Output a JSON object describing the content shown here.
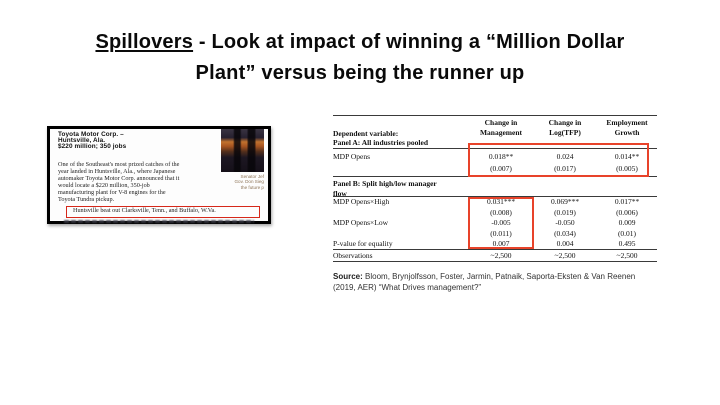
{
  "title": {
    "keyword": "Spillovers",
    "line1_rest": " - Look at impact of winning a “Million Dollar",
    "line2": "Plant” versus being the runner up"
  },
  "clipping": {
    "headline_lines": [
      "Toyota Motor Corp. –",
      "Huntsville, Ala.",
      "$220 million; 350 jobs"
    ],
    "body_lines": [
      "One of the Southeast's most prized catches of the",
      "year landed in Huntsville, Ala., where Japanese",
      "automaker Toyota Motor Corp. announced that it",
      "would locate a $220 million, 350-job",
      "manufacturing plant for V-8 engines for the",
      "Toyota Tundra pickup."
    ],
    "highlight_text": "Huntsville beat out Clarksville, Tenn., and Buffalo, W.Va.",
    "photo_caption_lines": [
      "Senator Jef",
      "Gov. Don Sieg",
      "the future p"
    ]
  },
  "table": {
    "dep_var_label": "Dependent variable:",
    "col_headers": [
      {
        "line1": "Change in",
        "line2": "Management"
      },
      {
        "line1": "Change in",
        "line2": "Log(TFP)"
      },
      {
        "line1": "Employment",
        "line2": "Growth"
      }
    ],
    "panel_a_label": "Panel A: All industries pooled",
    "rows_a": [
      {
        "label": "MDP Opens",
        "c1": "0.018**",
        "c2": "0.024",
        "c3": "0.014**"
      },
      {
        "label": "",
        "c1": "(0.007)",
        "c2": "(0.017)",
        "c3": "(0.005)"
      }
    ],
    "panel_b_label_line1": "Panel B: Split high/low manager",
    "panel_b_label_line2": "flow",
    "rows_b": [
      {
        "label": "MDP Opens×High",
        "c1": "0.031***",
        "c2": "0.069***",
        "c3": "0.017**"
      },
      {
        "label": "",
        "c1": "(0.008)",
        "c2": "(0.019)",
        "c3": "(0.006)"
      },
      {
        "label": "MDP Opens×Low",
        "c1": "-0.005",
        "c2": "-0.050",
        "c3": "0.009"
      },
      {
        "label": "",
        "c1": "(0.011)",
        "c2": "(0.034)",
        "c3": "(0.01)"
      },
      {
        "label": "P-value for equality",
        "c1": "0.007",
        "c2": "0.004",
        "c3": "0.495"
      },
      {
        "label": "Observations",
        "c1": "~2,500",
        "c2": "~2,500",
        "c3": "~2,500"
      }
    ]
  },
  "source_note": {
    "label": "Source:",
    "line1_rest": " Bloom, Brynjolfsson, Foster, Jarmin, Patnaik, Saporta-Eksten & Van Reenen",
    "line2": "(2019, AER) “What Drives management?”"
  },
  "colors": {
    "table_highlight_red": "#e8432a",
    "clipping_highlight_red": "#d6281a"
  }
}
